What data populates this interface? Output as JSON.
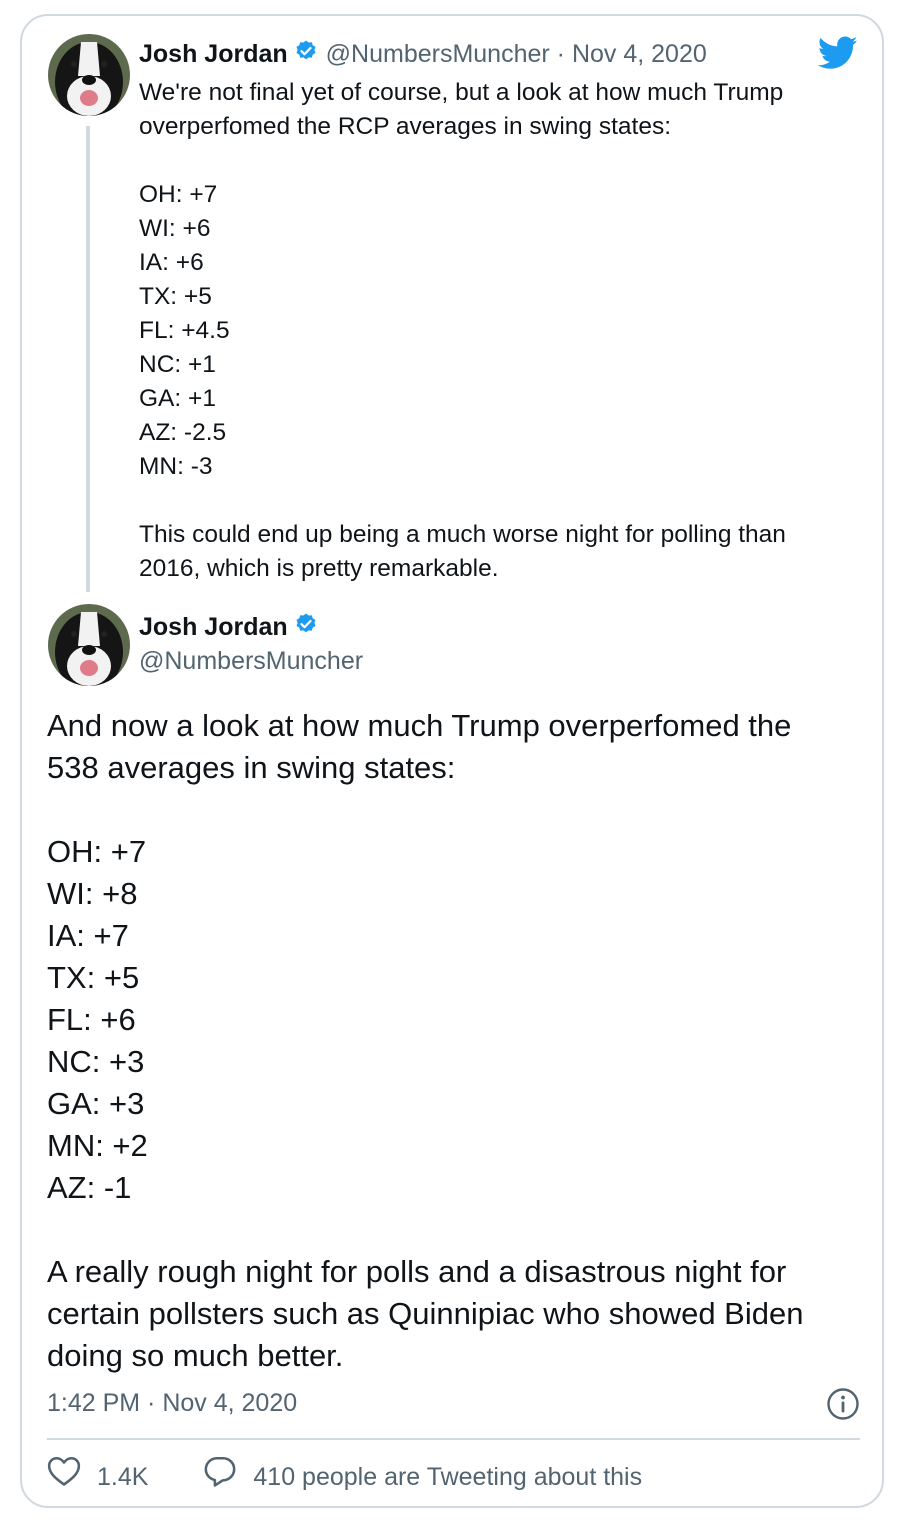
{
  "colors": {
    "twitter_blue": "#1d9bf0",
    "border": "#cfd9de",
    "secondary_text": "#536471"
  },
  "quoted_tweet": {
    "author_name": "Josh Jordan",
    "author_handle": "@NumbersMuncher",
    "date": "· Nov 4, 2020",
    "lines": [
      "We're not final yet of course, but a look at how much Trump",
      "overperfomed the RCP averages in swing states:",
      "",
      "OH: +7",
      "WI: +6",
      "IA: +6",
      "TX: +5",
      "FL: +4.5",
      "NC: +1",
      "GA: +1",
      "AZ: -2.5",
      "MN: -3",
      "",
      "This could end up being a much worse night for polling than",
      "2016, which is pretty remarkable."
    ]
  },
  "main_tweet": {
    "author_name": "Josh Jordan",
    "author_handle": "@NumbersMuncher",
    "lines": [
      "And now a look at how much Trump overperfomed the",
      "538 averages in swing states:",
      "",
      "OH: +7",
      "WI: +8",
      "IA: +7",
      "TX: +5",
      "FL: +6",
      "NC: +3",
      "GA: +3",
      "MN: +2",
      "AZ: -1",
      "",
      "A really rough night for polls and a disastrous night for",
      "certain pollsters such as Quinnipiac who showed Biden",
      "doing so much better."
    ],
    "timestamp": "1:42 PM · Nov 4, 2020",
    "likes": "1.4K",
    "conversation_text": "410 people are Tweeting about this"
  },
  "icons": [
    "verified-badge-icon",
    "twitter-bird-icon",
    "info-icon",
    "heart-icon",
    "reply-bubble-icon"
  ]
}
